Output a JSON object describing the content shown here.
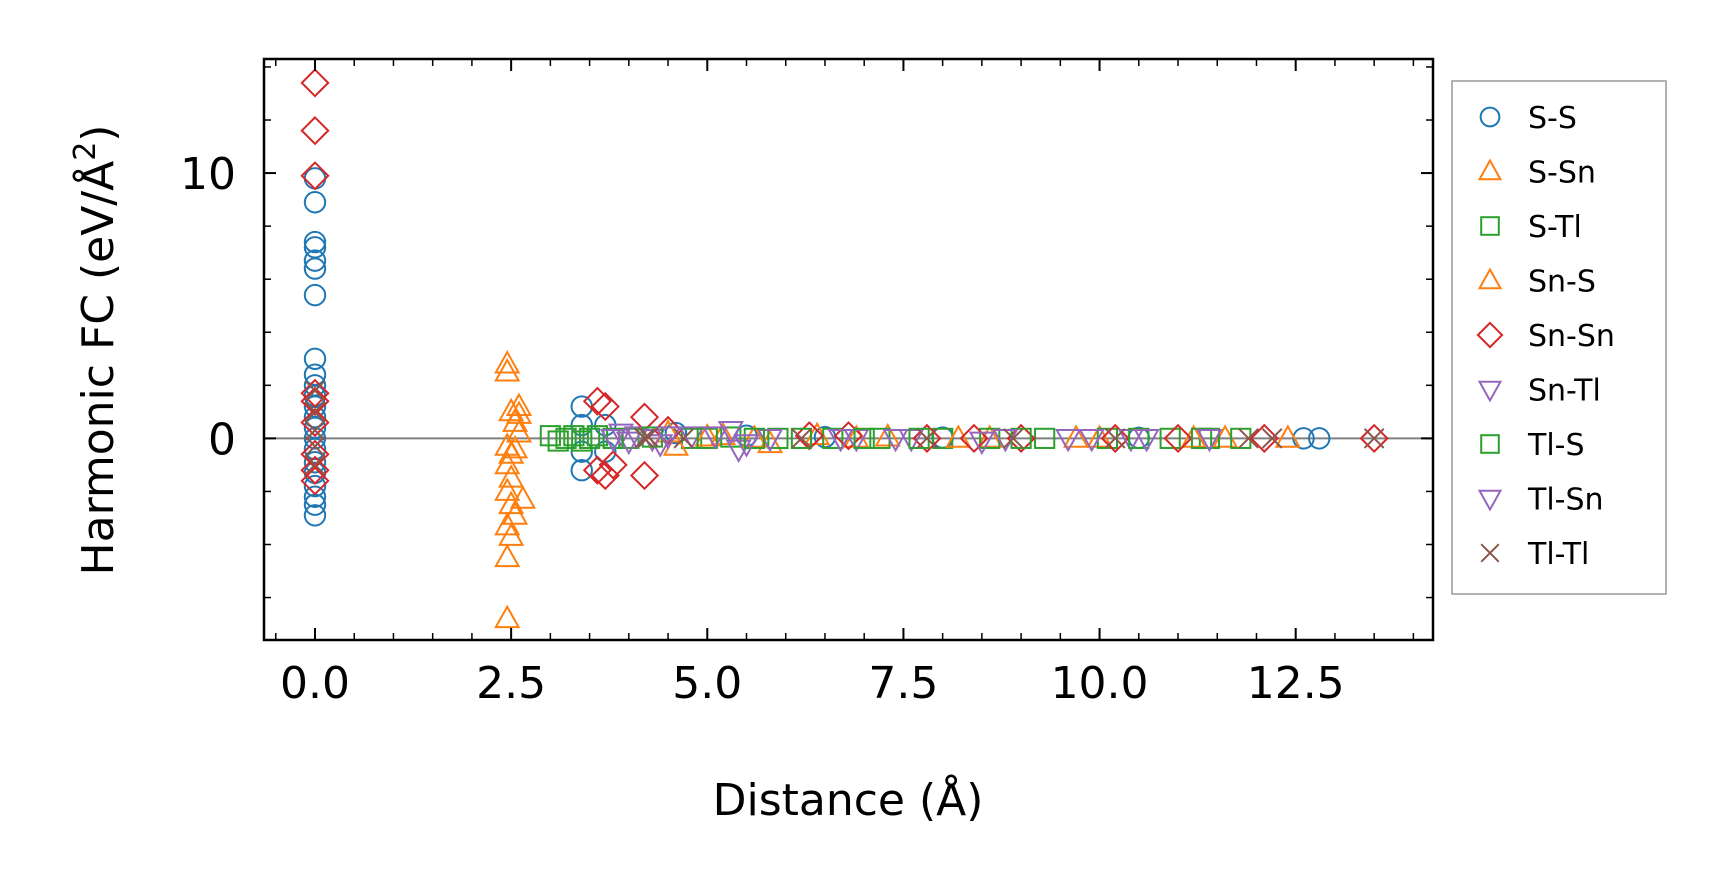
{
  "chart_data": {
    "type": "scatter",
    "xlabel": "Distance (Å)",
    "ylabel_main": "Harmonic FC (eV/Å",
    "ylabel_sup": "2",
    "ylabel_close": ")",
    "xlim": [
      -0.65,
      14.25
    ],
    "ylim": [
      -7.6,
      14.3
    ],
    "xticks": [
      0.0,
      2.5,
      5.0,
      7.5,
      10.0,
      12.5
    ],
    "xtick_labels": [
      "0.0",
      "2.5",
      "5.0",
      "7.5",
      "10.0",
      "12.5"
    ],
    "xminor": [
      -0.5,
      0,
      0.5,
      1,
      1.5,
      2,
      2.5,
      3,
      3.5,
      4,
      4.5,
      5,
      5.5,
      6,
      6.5,
      7,
      7.5,
      8,
      8.5,
      9,
      9.5,
      10,
      10.5,
      11,
      11.5,
      12,
      12.5,
      13,
      13.5,
      14
    ],
    "yticks": [
      0,
      10
    ],
    "ytick_labels": [
      "0",
      "10"
    ],
    "yminor": [
      -6,
      -4,
      -2,
      0,
      2,
      4,
      6,
      8,
      10,
      12,
      14
    ],
    "zero_line": 0,
    "legend_position": "outside-right",
    "series": [
      {
        "name": "S-S",
        "marker": "circle",
        "color": "#1f77b4",
        "points": [
          [
            0,
            9.8
          ],
          [
            0,
            8.9
          ],
          [
            0,
            7.4
          ],
          [
            0,
            7.2
          ],
          [
            0,
            6.7
          ],
          [
            0,
            6.4
          ],
          [
            0,
            5.4
          ],
          [
            0,
            3.0
          ],
          [
            0,
            2.4
          ],
          [
            0,
            2.0
          ],
          [
            0,
            1.6
          ],
          [
            0,
            1.2
          ],
          [
            0,
            0.8
          ],
          [
            0,
            0.4
          ],
          [
            0,
            0.0
          ],
          [
            0,
            -0.4
          ],
          [
            0,
            -0.9
          ],
          [
            0,
            -1.3
          ],
          [
            0,
            -1.8
          ],
          [
            0,
            -2.2
          ],
          [
            0,
            -2.5
          ],
          [
            0,
            -2.9
          ],
          [
            3.4,
            1.2
          ],
          [
            3.4,
            0.5
          ],
          [
            3.4,
            -0.5
          ],
          [
            3.4,
            -1.2
          ],
          [
            3.7,
            0.5
          ],
          [
            3.7,
            -0.5
          ],
          [
            4.6,
            0.2
          ],
          [
            5.5,
            0.1
          ],
          [
            6.5,
            0.05
          ],
          [
            8.0,
            0.03
          ],
          [
            10.5,
            0.02
          ],
          [
            12.6,
            0.0
          ],
          [
            12.8,
            0.0
          ]
        ]
      },
      {
        "name": "S-Sn",
        "marker": "triangle-up",
        "color": "#ff7f0e",
        "points": [
          [
            2.45,
            2.8
          ],
          [
            2.45,
            2.5
          ],
          [
            2.5,
            1.0
          ],
          [
            2.55,
            0.6
          ],
          [
            2.6,
            0.2
          ],
          [
            2.45,
            -0.3
          ],
          [
            2.5,
            -0.6
          ],
          [
            2.45,
            -1.0
          ],
          [
            2.5,
            -1.5
          ],
          [
            2.45,
            -2.0
          ],
          [
            2.5,
            -2.5
          ],
          [
            2.55,
            -2.9
          ],
          [
            2.45,
            -3.3
          ],
          [
            2.5,
            -3.7
          ],
          [
            2.45,
            -4.5
          ],
          [
            2.45,
            -6.8
          ],
          [
            2.6,
            1.2
          ],
          [
            2.65,
            -2.3
          ],
          [
            4.5,
            0.2
          ],
          [
            5.2,
            0.1
          ],
          [
            5.8,
            -0.2
          ],
          [
            6.4,
            0.1
          ],
          [
            7.3,
            0.05
          ],
          [
            8.6,
            0.0
          ],
          [
            10.0,
            0.0
          ],
          [
            11.6,
            0.0
          ],
          [
            12.4,
            0.0
          ]
        ]
      },
      {
        "name": "S-Tl",
        "marker": "square",
        "color": "#2ca02c",
        "points": [
          [
            3.0,
            0.1
          ],
          [
            3.2,
            0.0
          ],
          [
            3.3,
            0.1
          ],
          [
            3.5,
            0.0
          ],
          [
            3.6,
            0.1
          ],
          [
            4.0,
            0.0
          ],
          [
            4.8,
            0.0
          ],
          [
            5.3,
            0.05
          ],
          [
            5.9,
            0.0
          ],
          [
            6.6,
            0.0
          ],
          [
            7.2,
            0.0
          ],
          [
            8.0,
            0.0
          ],
          [
            8.6,
            0.0
          ],
          [
            9.3,
            0.0
          ],
          [
            10.1,
            0.0
          ],
          [
            10.9,
            0.0
          ],
          [
            11.4,
            0.0
          ],
          [
            11.8,
            0.0
          ]
        ]
      },
      {
        "name": "Sn-S",
        "marker": "triangle-up",
        "color": "#ff7f0e",
        "points": [
          [
            2.55,
            -0.4
          ],
          [
            2.6,
            0.9
          ],
          [
            4.6,
            -0.3
          ],
          [
            5.0,
            0.05
          ],
          [
            5.6,
            0.0
          ],
          [
            6.9,
            0.0
          ],
          [
            8.2,
            0.0
          ],
          [
            9.7,
            0.0
          ],
          [
            11.2,
            0.0
          ]
        ]
      },
      {
        "name": "Sn-Sn",
        "marker": "diamond",
        "color": "#d62728",
        "points": [
          [
            0,
            13.4
          ],
          [
            0,
            11.6
          ],
          [
            0,
            9.9
          ],
          [
            0,
            1.7
          ],
          [
            0,
            1.4
          ],
          [
            0,
            0.6
          ],
          [
            0,
            -0.6
          ],
          [
            0,
            -1.2
          ],
          [
            0,
            -1.6
          ],
          [
            3.6,
            1.4
          ],
          [
            3.7,
            1.2
          ],
          [
            3.6,
            -1.2
          ],
          [
            3.7,
            -1.4
          ],
          [
            3.8,
            -1.0
          ],
          [
            4.2,
            0.8
          ],
          [
            4.2,
            -1.4
          ],
          [
            4.5,
            0.3
          ],
          [
            6.3,
            0.1
          ],
          [
            6.8,
            0.1
          ],
          [
            7.8,
            0.0
          ],
          [
            8.4,
            0.0
          ],
          [
            9.0,
            0.0
          ],
          [
            10.2,
            0.0
          ],
          [
            11.0,
            0.0
          ],
          [
            12.1,
            0.0
          ],
          [
            13.5,
            0.0
          ]
        ]
      },
      {
        "name": "Sn-Tl",
        "marker": "triangle-down",
        "color": "#9467bd",
        "points": [
          [
            3.9,
            0.2
          ],
          [
            4.0,
            -0.1
          ],
          [
            4.1,
            0.1
          ],
          [
            4.3,
            0.0
          ],
          [
            4.4,
            -0.2
          ],
          [
            4.8,
            0.1
          ],
          [
            5.3,
            0.3
          ],
          [
            5.4,
            -0.4
          ],
          [
            5.8,
            0.0
          ],
          [
            6.9,
            0.0
          ],
          [
            7.6,
            0.0
          ],
          [
            8.5,
            -0.1
          ],
          [
            9.6,
            0.0
          ],
          [
            10.4,
            0.0
          ]
        ]
      },
      {
        "name": "Tl-S",
        "marker": "square",
        "color": "#2ca02c",
        "points": [
          [
            3.1,
            -0.1
          ],
          [
            3.4,
            -0.1
          ],
          [
            3.8,
            0.0
          ],
          [
            4.3,
            0.05
          ],
          [
            5.0,
            0.0
          ],
          [
            5.6,
            0.0
          ],
          [
            6.2,
            0.0
          ],
          [
            7.0,
            0.0
          ],
          [
            7.7,
            0.0
          ],
          [
            9.0,
            0.0
          ],
          [
            10.5,
            0.0
          ],
          [
            11.3,
            0.0
          ]
        ]
      },
      {
        "name": "Tl-Sn",
        "marker": "triangle-down",
        "color": "#9467bd",
        "points": [
          [
            3.8,
            0.0
          ],
          [
            4.5,
            0.1
          ],
          [
            5.1,
            0.1
          ],
          [
            5.5,
            -0.2
          ],
          [
            6.7,
            0.0
          ],
          [
            7.4,
            0.0
          ],
          [
            8.8,
            0.0
          ],
          [
            9.9,
            0.0
          ],
          [
            10.6,
            0.0
          ],
          [
            11.4,
            0.0
          ]
        ]
      },
      {
        "name": "Tl-Tl",
        "marker": "x",
        "color": "#8c564b",
        "points": [
          [
            0,
            1.8
          ],
          [
            0,
            1.0
          ],
          [
            0,
            0.3
          ],
          [
            0,
            -0.3
          ],
          [
            0,
            -1.0
          ],
          [
            4.2,
            0.0
          ],
          [
            4.25,
            0.05
          ],
          [
            4.7,
            0.0
          ],
          [
            6.2,
            0.0
          ],
          [
            7.8,
            0.0
          ],
          [
            8.9,
            0.0
          ],
          [
            10.2,
            0.0
          ],
          [
            11.9,
            0.0
          ],
          [
            12.2,
            0.0
          ],
          [
            13.5,
            0.0
          ]
        ]
      }
    ]
  }
}
